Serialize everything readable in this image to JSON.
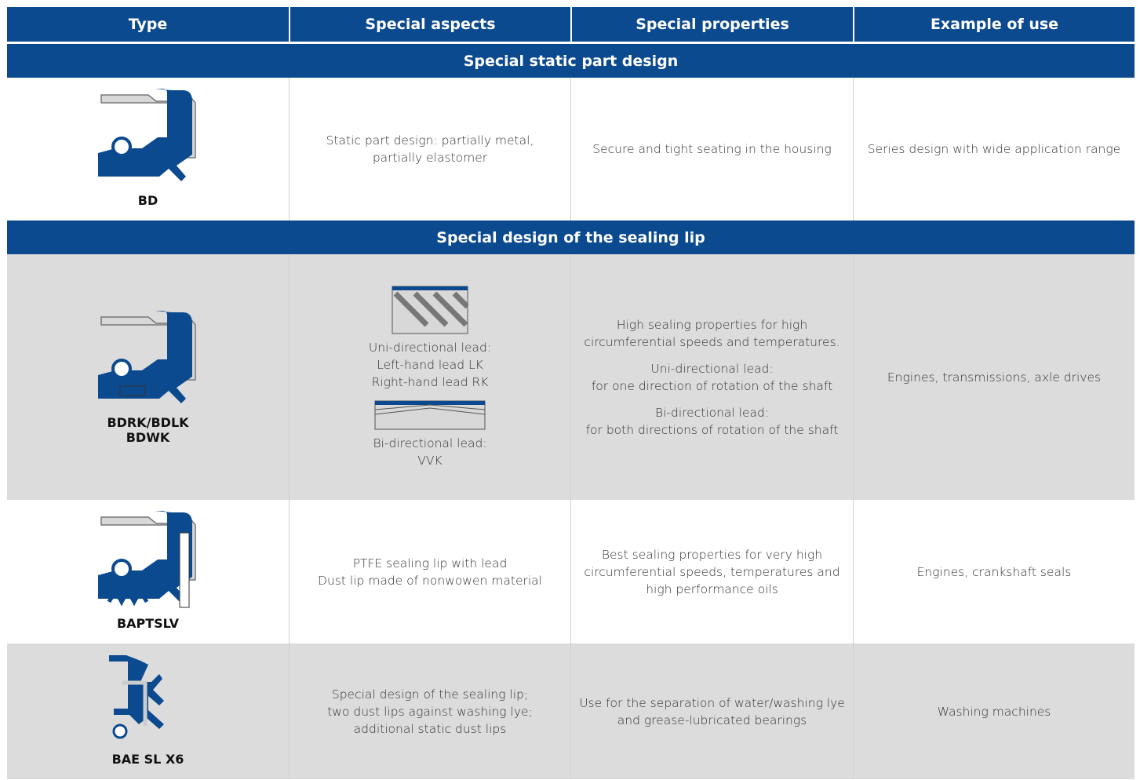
{
  "table": {
    "header": [
      "Type",
      "Special aspects",
      "Special properties",
      "Example of use"
    ],
    "sections": [
      {
        "title": "Special static part design",
        "rows": [
          {
            "type": [
              "BD"
            ],
            "aspects": [
              [
                "Static part design: partially metal,",
                "partially elastomer"
              ]
            ],
            "properties": [
              [
                "Secure and tight seating in the housing"
              ]
            ],
            "use": [
              [
                "Series design with wide application range"
              ]
            ]
          }
        ]
      },
      {
        "title": "Special design of the sealing lip",
        "rows": [
          {
            "type": [
              "BDRK/BDLK",
              "BDWK"
            ],
            "aspects": [
              [
                "Uni-directional lead:",
                "Left-hand lead LK",
                "Right-hand lead RK"
              ],
              [
                "Bi-directional lead:",
                "VVK"
              ]
            ],
            "properties": [
              [
                "High sealing properties for high",
                "circumferential speeds and temperatures."
              ],
              [
                "Uni-directional lead:",
                "for one direction of rotation of the shaft"
              ],
              [
                "Bi-directional lead:",
                "for both directions of rotation of the shaft"
              ]
            ],
            "use": [
              [
                "Engines, transmissions, axle drives"
              ]
            ]
          },
          {
            "type": [
              "BAPTSLV"
            ],
            "aspects": [
              [
                "PTFE sealing lip with lead",
                "Dust lip made of nonwowen material"
              ]
            ],
            "properties": [
              [
                "Best sealing properties for very high",
                "circumferential speeds, temperatures and",
                "high performance oils"
              ]
            ],
            "use": [
              [
                "Engines, crankshaft seals"
              ]
            ]
          },
          {
            "type": [
              "BAE SL X6"
            ],
            "aspects": [
              [
                "Special design of the sealing lip;",
                "two dust lips against washing lye;",
                "additional static dust lips"
              ]
            ],
            "properties": [
              [
                "Use for the separation of water/washing lye",
                "and grease-lubricated bearings"
              ]
            ],
            "use": [
              [
                "Washing machines"
              ]
            ]
          }
        ]
      }
    ]
  }
}
